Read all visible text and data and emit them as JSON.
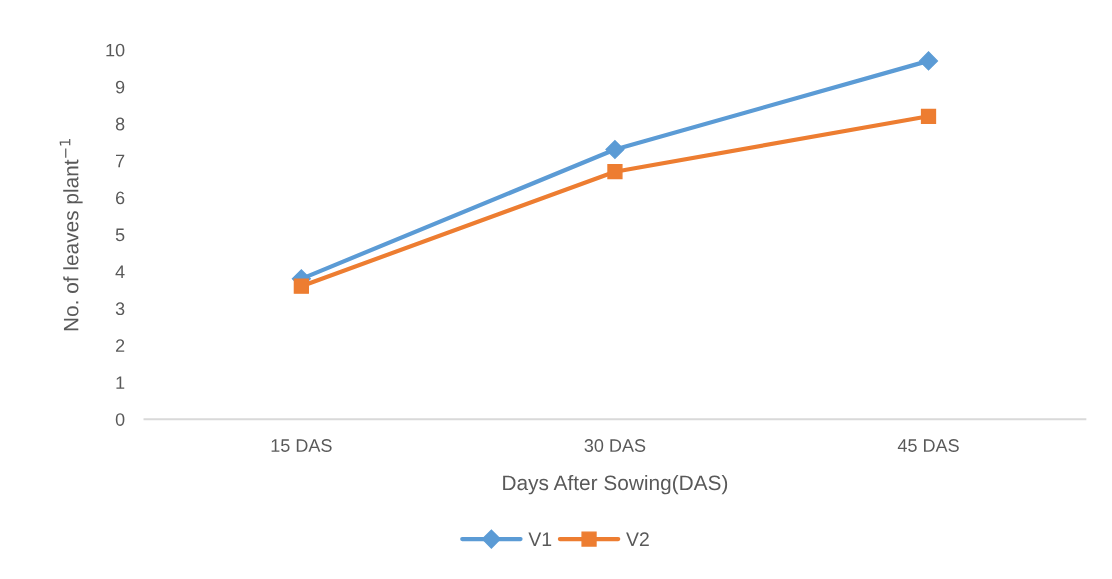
{
  "chart_data": {
    "type": "line",
    "xlabel": "Days After Sowing(DAS)",
    "ylabel": "No. of leaves plant$^{−1}$",
    "categories": [
      "15 DAS",
      "30 DAS",
      "45 DAS"
    ],
    "series": [
      {
        "name": "V1",
        "color": "#5b9bd5",
        "marker": "diamond",
        "values": [
          3.8,
          7.3,
          9.7
        ]
      },
      {
        "name": "V2",
        "color": "#ed7d31",
        "marker": "square",
        "values": [
          3.6,
          6.7,
          8.2
        ]
      }
    ],
    "ylim": [
      0,
      10
    ],
    "yticks": [
      0,
      1,
      2,
      3,
      4,
      5,
      6,
      7,
      8,
      9,
      10
    ],
    "grid": false,
    "legend": "bottom",
    "line_style": "solid"
  }
}
